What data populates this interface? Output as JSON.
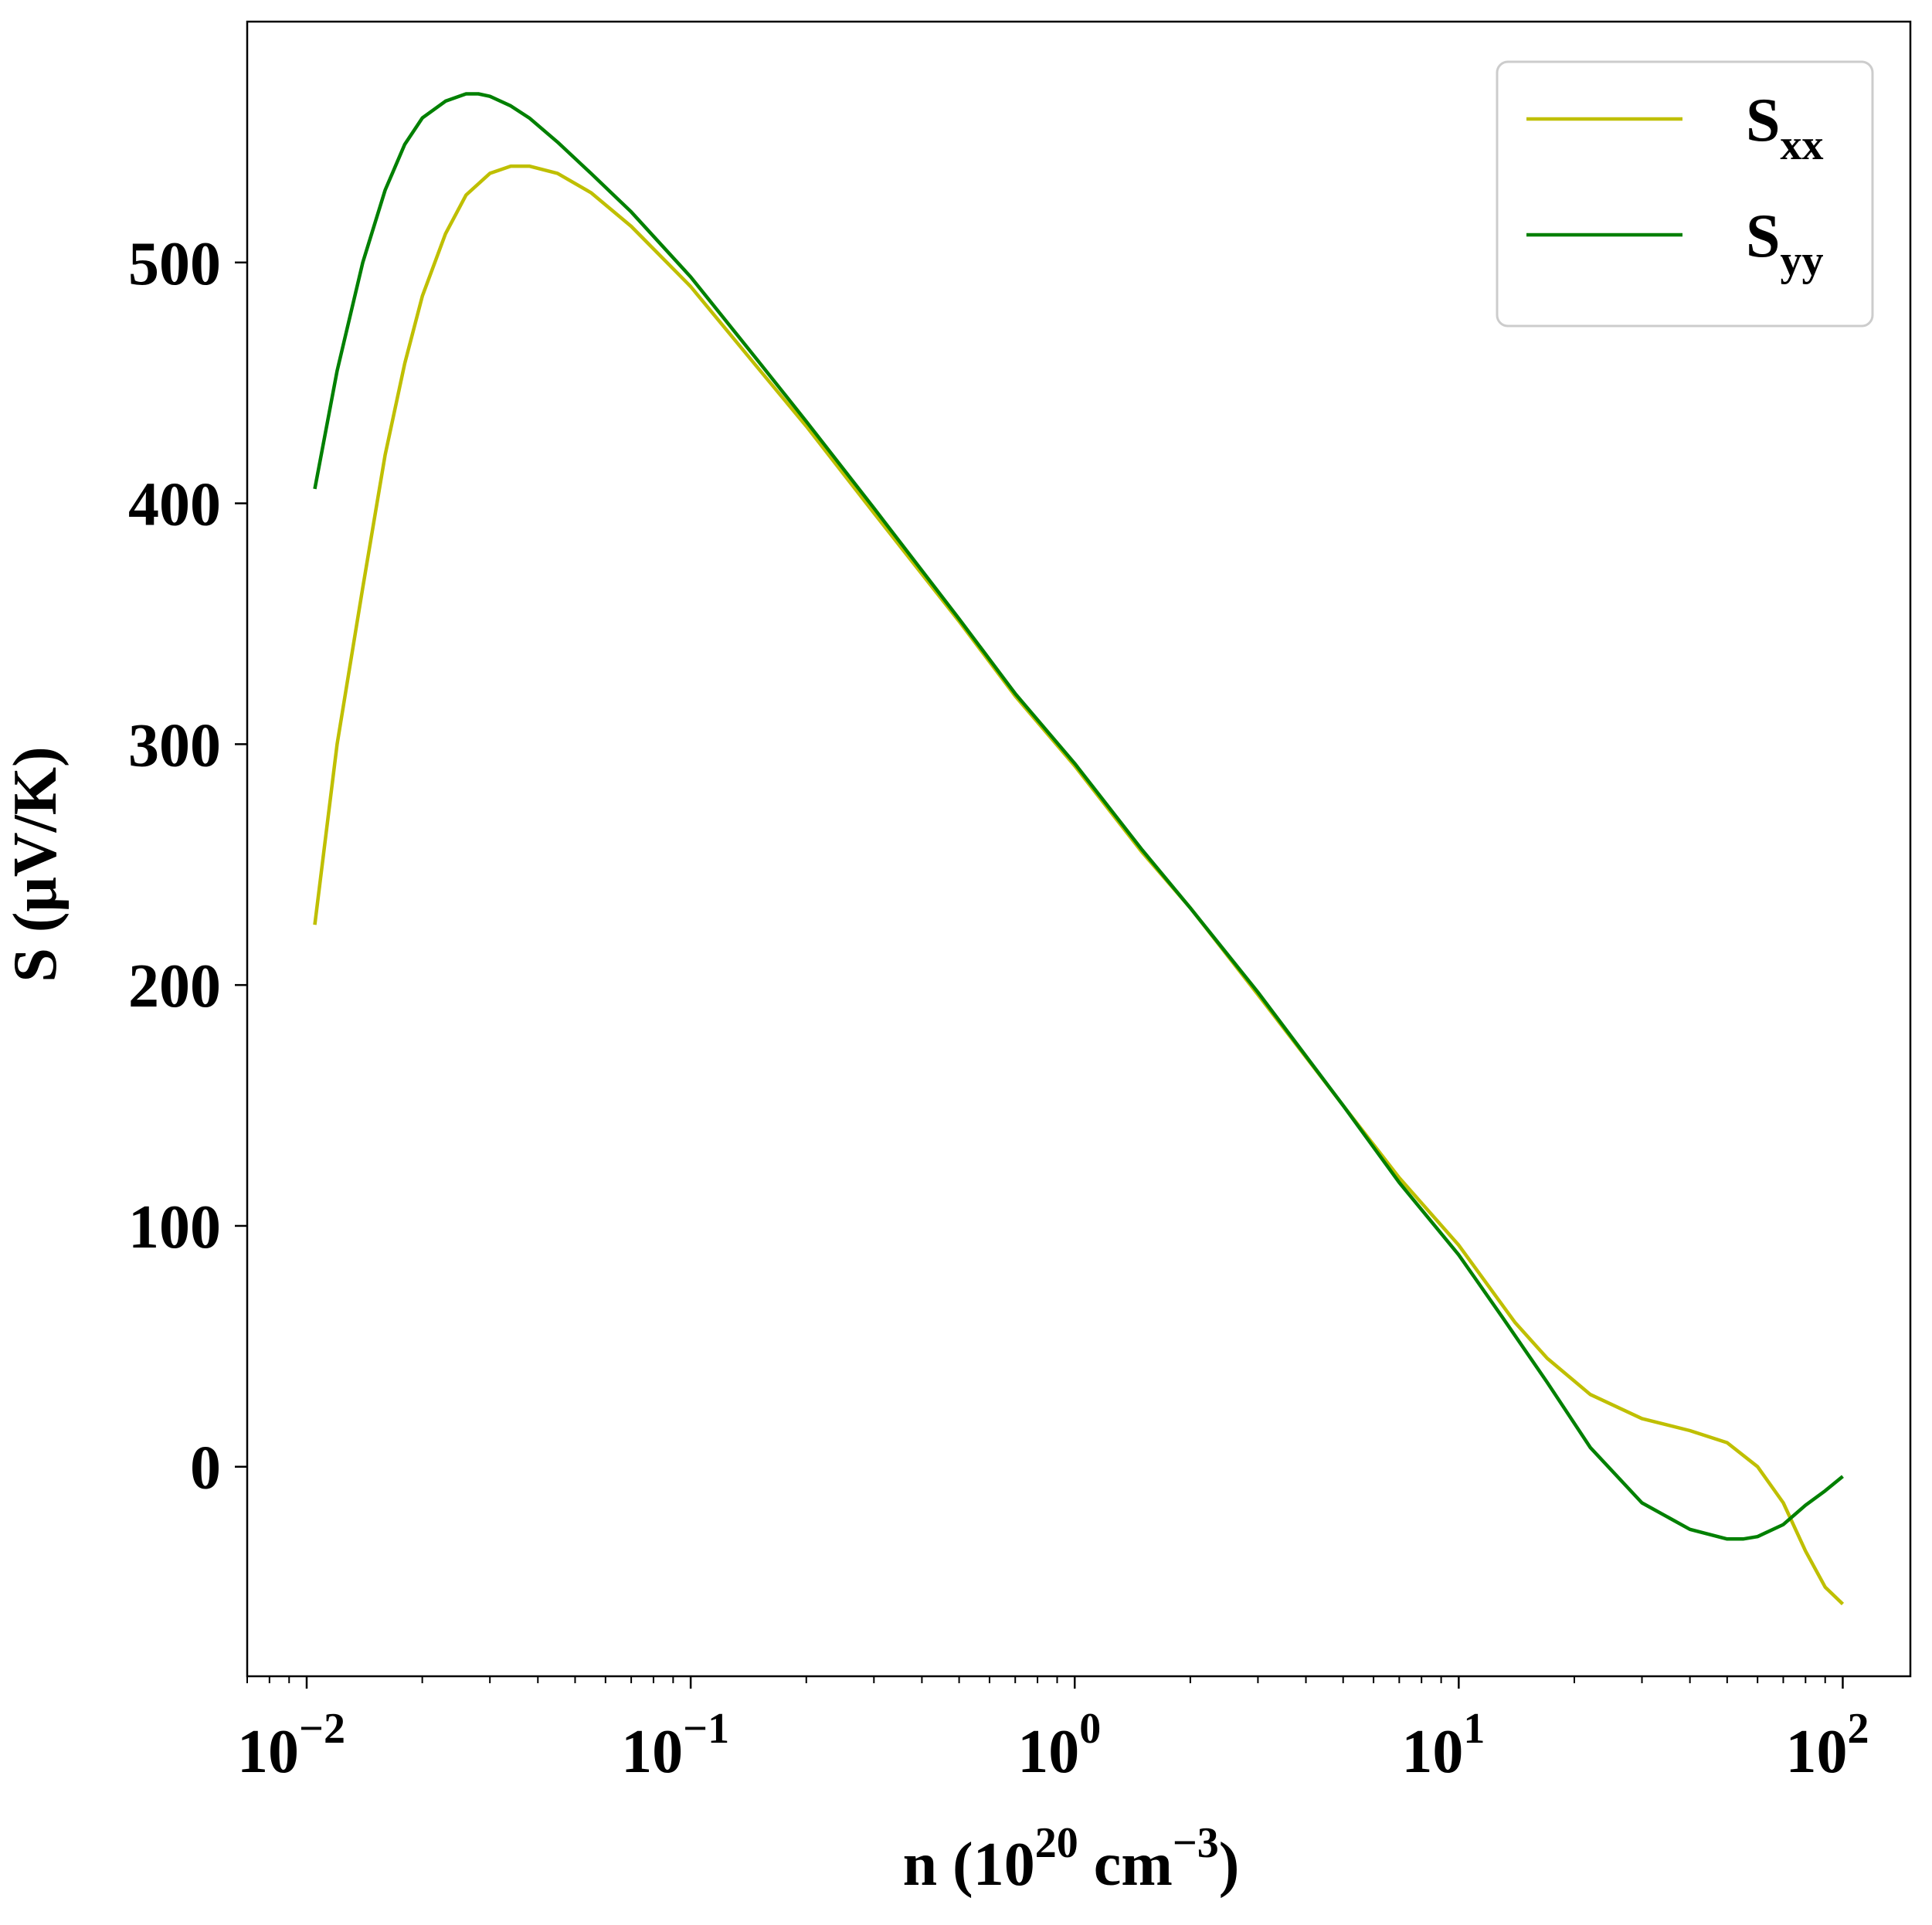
{
  "chart_data": {
    "type": "line",
    "xscale": "log",
    "xlim": [
      0.007,
      150
    ],
    "ylim": [
      -87,
      600
    ],
    "xlabel": {
      "base": "n (10",
      "sup1": "20",
      "mid": " cm",
      "sup2": "−3",
      "end": ")"
    },
    "ylabel": "S (μV/K)",
    "yticks": [
      0,
      100,
      200,
      300,
      400,
      500
    ],
    "xticks": [
      {
        "value": 0.01,
        "base": "10",
        "exp": "−2"
      },
      {
        "value": 0.1,
        "base": "10",
        "exp": "−1"
      },
      {
        "value": 1,
        "base": "10",
        "exp": "0"
      },
      {
        "value": 10,
        "base": "10",
        "exp": "1"
      },
      {
        "value": 100,
        "base": "10",
        "exp": "2"
      }
    ],
    "legend": {
      "position": "upper right"
    },
    "series": [
      {
        "name": "S",
        "subscript": "xx",
        "color": "#bfbf00",
        "x": [
          0.0105,
          0.012,
          0.014,
          0.016,
          0.018,
          0.02,
          0.023,
          0.026,
          0.03,
          0.034,
          0.038,
          0.045,
          0.055,
          0.07,
          0.1,
          0.15,
          0.2,
          0.3,
          0.5,
          0.7,
          1,
          1.5,
          2,
          3,
          5,
          7,
          10,
          14,
          17,
          22,
          30,
          40,
          50,
          60,
          70,
          80,
          90,
          100
        ],
        "y": [
          225,
          300,
          365,
          420,
          458,
          486,
          512,
          528,
          537,
          540,
          540,
          537,
          529,
          515,
          490,
          456,
          432,
          396,
          351,
          320,
          291,
          255,
          232,
          196,
          150,
          120,
          92,
          60,
          45,
          30,
          20,
          15,
          10,
          0,
          -15,
          -35,
          -50,
          -57
        ]
      },
      {
        "name": "S",
        "subscript": "yy",
        "color": "#008000",
        "x": [
          0.0105,
          0.012,
          0.014,
          0.016,
          0.018,
          0.02,
          0.023,
          0.026,
          0.028,
          0.03,
          0.034,
          0.038,
          0.045,
          0.055,
          0.07,
          0.1,
          0.15,
          0.2,
          0.3,
          0.5,
          0.7,
          1,
          1.5,
          2,
          3,
          5,
          7,
          10,
          13,
          17,
          22,
          30,
          40,
          50,
          55,
          60,
          70,
          80,
          90,
          100
        ],
        "y": [
          406,
          455,
          500,
          530,
          549,
          560,
          567,
          570,
          570,
          569,
          565,
          560,
          550,
          537,
          521,
          494,
          459,
          434,
          398,
          352,
          321,
          292,
          256,
          232,
          197,
          150,
          118,
          88,
          62,
          35,
          8,
          -15,
          -26,
          -30,
          -30,
          -29,
          -24,
          -16,
          -10,
          -4
        ]
      }
    ]
  }
}
